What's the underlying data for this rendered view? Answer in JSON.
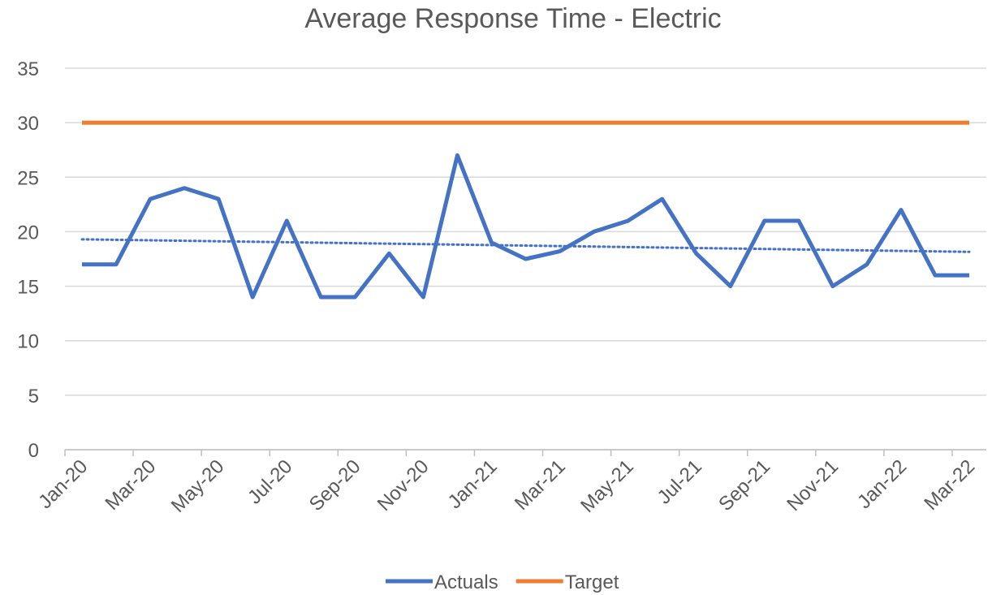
{
  "chart_data": {
    "type": "line",
    "title": "Average Response Time - Electric",
    "categories": [
      "Jan-20",
      null,
      "Mar-20",
      null,
      "May-20",
      null,
      "Jul-20",
      null,
      "Sep-20",
      null,
      "Nov-20",
      null,
      "Jan-21",
      null,
      "Mar-21",
      null,
      "May-21",
      null,
      "Jul-21",
      null,
      "Sep-21",
      null,
      "Nov-21",
      null,
      "Jan-22",
      null,
      "Mar-22"
    ],
    "series": [
      {
        "name": "Actuals",
        "color": "#4472c4",
        "values": [
          17,
          17,
          23,
          24,
          23,
          14,
          21,
          14,
          14,
          18,
          14,
          27,
          19,
          17.5,
          18.2,
          20,
          21,
          23,
          18,
          15,
          21,
          21,
          15,
          17,
          22,
          16,
          16
        ]
      },
      {
        "name": "Target",
        "color": "#ed7d31",
        "values": [
          30,
          30,
          30,
          30,
          30,
          30,
          30,
          30,
          30,
          30,
          30,
          30,
          30,
          30,
          30,
          30,
          30,
          30,
          30,
          30,
          30,
          30,
          30,
          30,
          30,
          30,
          30
        ]
      }
    ],
    "trendline": {
      "start": 19.3,
      "end": 18.15,
      "color": "#4472c4"
    },
    "ylim": [
      0,
      35
    ],
    "yticks": [
      0,
      5,
      10,
      15,
      20,
      25,
      30,
      35
    ],
    "grid": true,
    "legend": "bottom"
  }
}
